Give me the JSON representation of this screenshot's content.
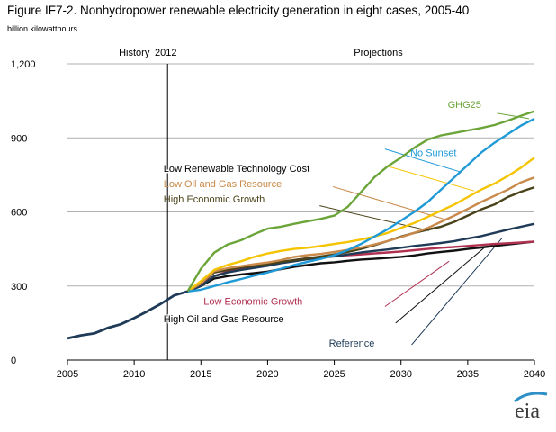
{
  "chart_data": {
    "type": "line",
    "title": "Figure IF7-2. Nonhydropower renewable electricity generation in eight cases, 2005-40",
    "subtitle": "billion kilowatthours",
    "xlabel": "",
    "ylabel": "",
    "xlim": [
      2005,
      2040
    ],
    "ylim": [
      0,
      1200
    ],
    "xticks": [
      2005,
      2010,
      2015,
      2020,
      2025,
      2030,
      2035,
      2040
    ],
    "yticks": [
      0,
      300,
      600,
      900,
      1200
    ],
    "ytick_labels": [
      "0",
      "300",
      "600",
      "900",
      "1,200"
    ],
    "grid": "horizontal",
    "divider_year": 2012.5,
    "annotations": {
      "history": "History",
      "year_2012": "2012",
      "projections": "Projections"
    },
    "history": {
      "color": "#1f3b57",
      "x": [
        2005,
        2006,
        2007,
        2008,
        2009,
        2010,
        2011,
        2012,
        2013,
        2014
      ],
      "y": [
        88,
        100,
        108,
        130,
        145,
        170,
        198,
        228,
        262,
        278
      ]
    },
    "series": [
      {
        "name": "GHG25",
        "color": "#6ba539",
        "x": [
          2014,
          2015,
          2016,
          2017,
          2018,
          2019,
          2020,
          2021,
          2022,
          2023,
          2024,
          2025,
          2026,
          2027,
          2028,
          2029,
          2030,
          2031,
          2032,
          2033,
          2034,
          2035,
          2036,
          2037,
          2038,
          2039,
          2040
        ],
        "y": [
          278,
          370,
          435,
          468,
          485,
          510,
          532,
          540,
          552,
          562,
          572,
          585,
          620,
          680,
          740,
          785,
          820,
          860,
          893,
          910,
          920,
          930,
          940,
          952,
          970,
          990,
          1008
        ]
      },
      {
        "name": "No Sunset",
        "color": "#1f9ad6",
        "x": [
          2014,
          2015,
          2016,
          2017,
          2018,
          2019,
          2020,
          2021,
          2022,
          2023,
          2024,
          2025,
          2026,
          2027,
          2028,
          2029,
          2030,
          2031,
          2032,
          2033,
          2034,
          2035,
          2036,
          2037,
          2038,
          2039,
          2040
        ],
        "y": [
          278,
          285,
          300,
          315,
          328,
          342,
          355,
          370,
          385,
          398,
          410,
          425,
          445,
          470,
          500,
          530,
          565,
          600,
          640,
          690,
          740,
          790,
          840,
          880,
          915,
          950,
          978
        ]
      },
      {
        "name": "Low Renewable Technology Cost",
        "color": "#f5c400",
        "x": [
          2014,
          2015,
          2016,
          2017,
          2018,
          2019,
          2020,
          2021,
          2022,
          2023,
          2024,
          2025,
          2026,
          2027,
          2028,
          2029,
          2030,
          2031,
          2032,
          2033,
          2034,
          2035,
          2036,
          2037,
          2038,
          2039,
          2040
        ],
        "y": [
          278,
          320,
          365,
          385,
          400,
          418,
          432,
          442,
          450,
          455,
          462,
          470,
          478,
          488,
          500,
          515,
          535,
          555,
          580,
          605,
          630,
          660,
          690,
          715,
          745,
          780,
          820
        ]
      },
      {
        "name": "Low Oil and Gas Resource",
        "color": "#c98a4b",
        "x": [
          2014,
          2015,
          2016,
          2017,
          2018,
          2019,
          2020,
          2021,
          2022,
          2023,
          2024,
          2025,
          2026,
          2027,
          2028,
          2029,
          2030,
          2031,
          2032,
          2033,
          2034,
          2035,
          2036,
          2037,
          2038,
          2039,
          2040
        ],
        "y": [
          278,
          310,
          360,
          372,
          380,
          388,
          395,
          405,
          418,
          425,
          430,
          438,
          446,
          456,
          468,
          482,
          498,
          515,
          535,
          560,
          585,
          612,
          640,
          665,
          690,
          720,
          740
        ]
      },
      {
        "name": "High Economic Growth",
        "color": "#4a4218",
        "x": [
          2014,
          2015,
          2016,
          2017,
          2018,
          2019,
          2020,
          2021,
          2022,
          2023,
          2024,
          2025,
          2026,
          2027,
          2028,
          2029,
          2030,
          2031,
          2032,
          2033,
          2034,
          2035,
          2036,
          2037,
          2038,
          2039,
          2040
        ],
        "y": [
          278,
          310,
          355,
          365,
          375,
          382,
          390,
          398,
          405,
          412,
          420,
          428,
          438,
          450,
          465,
          482,
          500,
          515,
          528,
          540,
          560,
          585,
          610,
          630,
          660,
          682,
          700
        ]
      },
      {
        "name": "Reference",
        "color": "#1f3b57",
        "x": [
          2014,
          2015,
          2016,
          2017,
          2018,
          2019,
          2020,
          2021,
          2022,
          2023,
          2024,
          2025,
          2026,
          2027,
          2028,
          2029,
          2030,
          2031,
          2032,
          2033,
          2034,
          2035,
          2036,
          2037,
          2038,
          2039,
          2040
        ],
        "y": [
          278,
          300,
          340,
          355,
          365,
          373,
          382,
          392,
          400,
          408,
          415,
          420,
          428,
          436,
          442,
          448,
          455,
          462,
          468,
          474,
          482,
          492,
          502,
          515,
          528,
          540,
          552
        ]
      },
      {
        "name": "Low Economic Growth",
        "color": "#b03050",
        "x": [
          2014,
          2015,
          2016,
          2017,
          2018,
          2019,
          2020,
          2021,
          2022,
          2023,
          2024,
          2025,
          2026,
          2027,
          2028,
          2029,
          2030,
          2031,
          2032,
          2033,
          2034,
          2035,
          2036,
          2037,
          2038,
          2039,
          2040
        ],
        "y": [
          278,
          305,
          340,
          358,
          368,
          378,
          386,
          395,
          405,
          412,
          418,
          422,
          425,
          428,
          432,
          436,
          440,
          445,
          450,
          455,
          458,
          462,
          466,
          470,
          473,
          476,
          480
        ]
      },
      {
        "name": "High Oil and Gas Resource",
        "color": "#111111",
        "x": [
          2014,
          2015,
          2016,
          2017,
          2018,
          2019,
          2020,
          2021,
          2022,
          2023,
          2024,
          2025,
          2026,
          2027,
          2028,
          2029,
          2030,
          2031,
          2032,
          2033,
          2034,
          2035,
          2036,
          2037,
          2038,
          2039,
          2040
        ],
        "y": [
          278,
          300,
          330,
          340,
          347,
          352,
          358,
          368,
          378,
          385,
          392,
          396,
          402,
          407,
          410,
          414,
          418,
          424,
          432,
          438,
          443,
          450,
          456,
          462,
          468,
          474,
          480
        ]
      }
    ],
    "labels": [
      {
        "text": "GHG25",
        "series": "GHG25",
        "anchor": [
          2033.5,
          1035
        ],
        "leader": [
          [
            2037.2,
            1000
          ],
          [
            2039.6,
            978
          ]
        ]
      },
      {
        "text": "No Sunset",
        "series": "No Sunset",
        "anchor": [
          2030.7,
          840
        ],
        "leader": [
          [
            2028.8,
            855
          ],
          [
            2034.4,
            763
          ]
        ]
      },
      {
        "text": "Low Renewable Technology Cost",
        "series": "Low Renewable Technology Cost",
        "anchor": [
          2012.2,
          776
        ],
        "leader": [
          [
            2029,
            785
          ],
          [
            2035.5,
            685
          ]
        ]
      },
      {
        "text": "Low Oil and Gas Resource",
        "series": "Low Oil and Gas Resource",
        "anchor": [
          2012.2,
          714
        ],
        "leader": [
          [
            2024.9,
            702
          ],
          [
            2033.3,
            570
          ]
        ]
      },
      {
        "text": "High Economic Growth",
        "series": "High Economic Growth",
        "anchor": [
          2012.2,
          652
        ],
        "leader": [
          [
            2023.9,
            625
          ],
          [
            2032.1,
            524
          ]
        ]
      },
      {
        "text": "Low Economic Growth",
        "series": "Low Economic Growth",
        "anchor": [
          2015.2,
          238
        ],
        "leader": [
          [
            2028.8,
            217
          ],
          [
            2033.6,
            400
          ]
        ]
      },
      {
        "text": "High Oil and Gas Resource",
        "series": "High Oil and Gas Resource",
        "anchor": [
          2012.2,
          167
        ],
        "leader": [
          [
            2029.6,
            150
          ],
          [
            2036.3,
            458
          ]
        ]
      },
      {
        "text": "Reference",
        "series": "Reference",
        "anchor": [
          2024.6,
          70
        ],
        "leader": [
          [
            2030.8,
            62
          ],
          [
            2037.6,
            496
          ]
        ]
      }
    ]
  },
  "logo_text": "eia"
}
